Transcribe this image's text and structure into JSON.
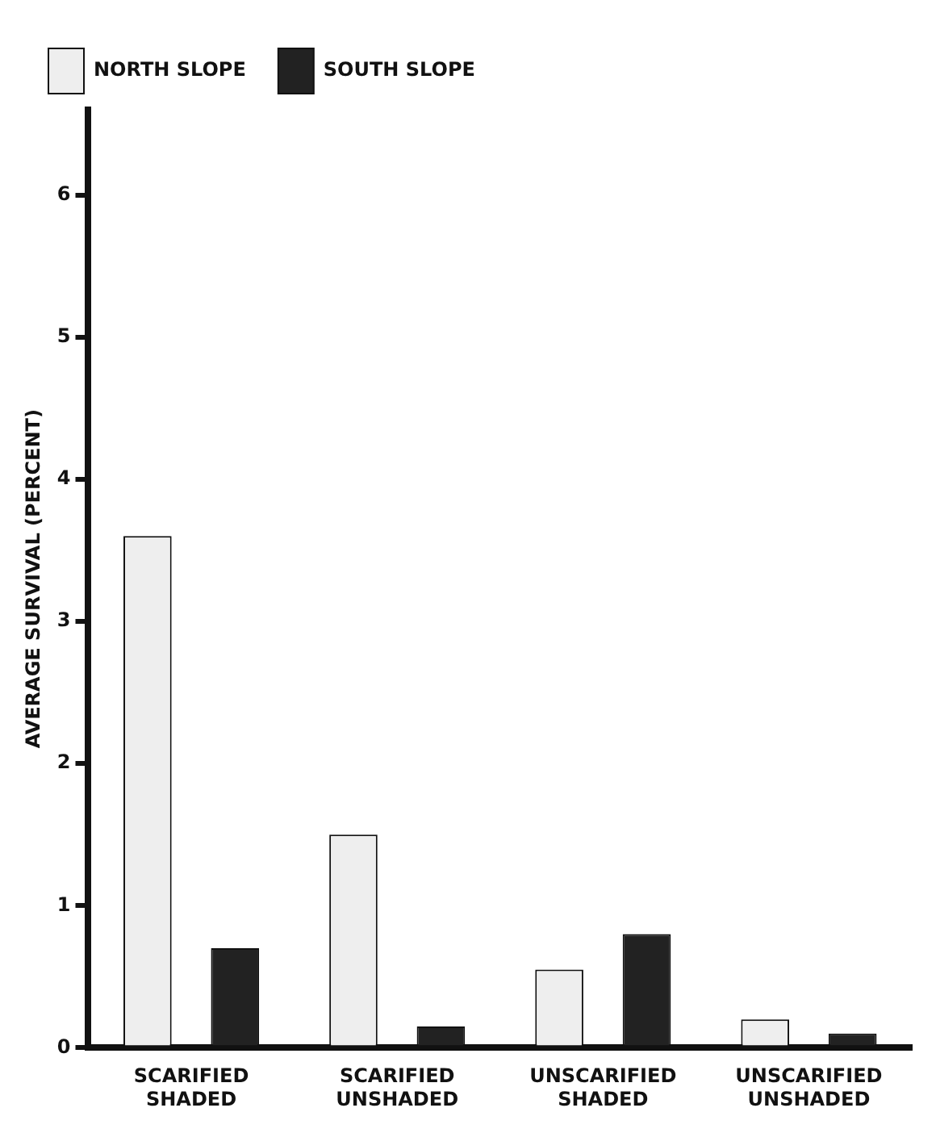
{
  "chart_data": {
    "type": "bar",
    "ylabel": "AVERAGE SURVIVAL (PERCENT)",
    "categories": [
      "SCARIFIED SHADED",
      "SCARIFIED UNSHADED",
      "UNSCARIFIED SHADED",
      "UNSCARIFIED UNSHADED"
    ],
    "series": [
      {
        "name": "NORTH SLOPE",
        "color": "#eeeeee",
        "values": [
          3.6,
          1.5,
          0.55,
          0.2
        ]
      },
      {
        "name": "SOUTH SLOPE",
        "color": "#222222",
        "values": [
          0.7,
          0.15,
          0.8,
          0.1
        ]
      }
    ],
    "ylim": [
      0,
      6.6
    ],
    "yticks": [
      0,
      1,
      2,
      3,
      4,
      5,
      6
    ],
    "grid": false,
    "legend": "top left"
  }
}
